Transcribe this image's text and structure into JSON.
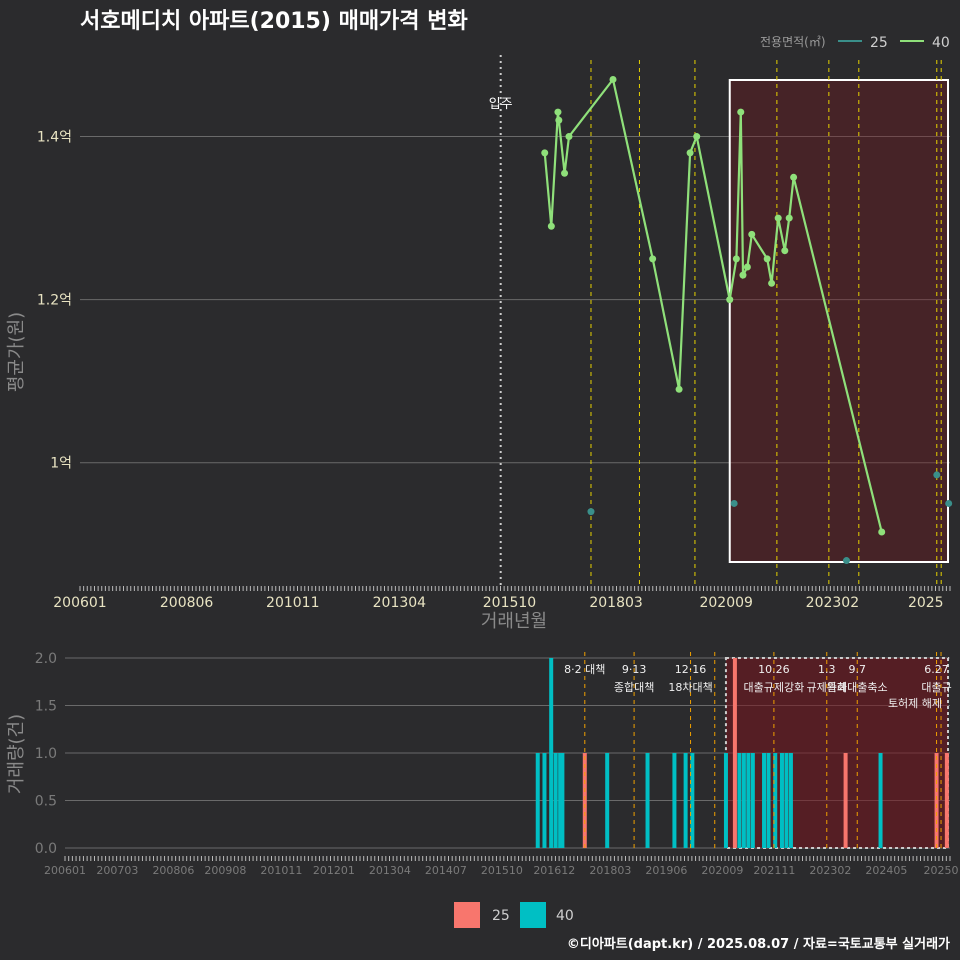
{
  "chart_data": [
    {
      "type": "line",
      "title": "서호메디치 아파트(2015) 매매가격 변화",
      "xlabel": "거래년월",
      "ylabel": "평균가(원)",
      "x_ticks": [
        "200601",
        "200806",
        "201011",
        "201304",
        "201510",
        "201803",
        "202009",
        "202302",
        "2025"
      ],
      "y_ticks": [
        {
          "value": 1.0,
          "label": "1억"
        },
        {
          "value": 1.2,
          "label": "1.2억"
        },
        {
          "value": 1.4,
          "label": "1.4억"
        }
      ],
      "xlim": [
        2006.0,
        2025.75
      ],
      "ylim": [
        0.85,
        1.5
      ],
      "move_in": {
        "x": 2015.55,
        "label": "입주"
      },
      "highlight_range": [
        2020.75,
        2025.75
      ],
      "legend_title": "전용면적(㎡)",
      "series": [
        {
          "name": "25",
          "color": "#3a8f8a",
          "points": [
            [
              2017.6,
              0.94
            ],
            [
              2020.85,
              0.95
            ],
            [
              2023.4,
              0.88
            ],
            [
              2025.45,
              0.985
            ],
            [
              2025.72,
              0.95
            ]
          ]
        },
        {
          "name": "40",
          "color": "#8fe07a",
          "points": [
            [
              2016.55,
              1.38
            ],
            [
              2016.7,
              1.29
            ],
            [
              2016.85,
              1.43
            ],
            [
              2016.87,
              1.42
            ],
            [
              2017.0,
              1.355
            ],
            [
              2017.1,
              1.4
            ],
            [
              2018.1,
              1.47
            ],
            [
              2019.0,
              1.25
            ],
            [
              2019.6,
              1.09
            ],
            [
              2019.85,
              1.38
            ],
            [
              2020.0,
              1.4
            ],
            [
              2020.75,
              1.2
            ],
            [
              2020.9,
              1.25
            ],
            [
              2021.0,
              1.43
            ],
            [
              2021.05,
              1.23
            ],
            [
              2021.15,
              1.24
            ],
            [
              2021.25,
              1.28
            ],
            [
              2021.6,
              1.25
            ],
            [
              2021.7,
              1.22
            ],
            [
              2021.85,
              1.3
            ],
            [
              2022.0,
              1.26
            ],
            [
              2022.1,
              1.3
            ],
            [
              2022.2,
              1.35
            ],
            [
              2024.2,
              0.915
            ]
          ]
        }
      ],
      "policy_lines": [
        2017.6,
        2018.7,
        2019.96,
        2021.82,
        2023.0,
        2023.68,
        2025.45,
        2025.55
      ]
    },
    {
      "type": "bar",
      "xlabel": "",
      "ylabel": "거래량(건)",
      "x_ticks": [
        "200601",
        "200703",
        "200806",
        "200908",
        "201011",
        "201201",
        "201304",
        "201407",
        "201510",
        "201612",
        "201803",
        "201906",
        "202009",
        "202111",
        "202302",
        "202405",
        "20250"
      ],
      "y_ticks": [
        "0.0",
        "0.5",
        "1.0",
        "1.5",
        "2.0"
      ],
      "ylim": [
        0,
        2
      ],
      "xlim": [
        2006.0,
        2025.75
      ],
      "highlight_range": [
        2020.75,
        2025.75
      ],
      "series": [
        {
          "name": "25",
          "color": "#f8766d",
          "bars": [
            [
              2017.6,
              1
            ],
            [
              2020.95,
              2
            ],
            [
              2023.42,
              1
            ],
            [
              2025.45,
              1
            ],
            [
              2025.68,
              1
            ]
          ]
        },
        {
          "name": "40",
          "color": "#00bfc4",
          "bars": [
            [
              2016.55,
              1
            ],
            [
              2016.7,
              1
            ],
            [
              2016.85,
              2
            ],
            [
              2016.95,
              1
            ],
            [
              2017.05,
              1
            ],
            [
              2017.1,
              1
            ],
            [
              2018.1,
              1
            ],
            [
              2019.0,
              1
            ],
            [
              2019.6,
              1
            ],
            [
              2019.85,
              1
            ],
            [
              2020.0,
              1
            ],
            [
              2020.75,
              1
            ],
            [
              2021.05,
              1
            ],
            [
              2021.15,
              1
            ],
            [
              2021.25,
              1
            ],
            [
              2021.35,
              1
            ],
            [
              2021.6,
              1
            ],
            [
              2021.7,
              1
            ],
            [
              2021.85,
              1
            ],
            [
              2022.0,
              1
            ],
            [
              2022.1,
              1
            ],
            [
              2022.2,
              1
            ],
            [
              2024.2,
              1
            ]
          ]
        }
      ],
      "policy_lines": [
        {
          "x": 2017.6,
          "date": "8·2 대책",
          "label": ""
        },
        {
          "x": 2018.7,
          "date": "9·13",
          "label": "종합대책"
        },
        {
          "x": 2019.96,
          "date": "12·16",
          "label": "18차대책"
        },
        {
          "x": 2020.5,
          "date": "",
          "label": ""
        },
        {
          "x": 2021.82,
          "date": "10.26",
          "label": "대출규제강화"
        },
        {
          "x": 2023.0,
          "date": "1.3",
          "label": "규제완화"
        },
        {
          "x": 2023.68,
          "date": "9.7",
          "label": "특례대출축소"
        },
        {
          "x": 2025.45,
          "date": "6.27",
          "label": "대출규"
        },
        {
          "x": 2025.55,
          "date": "",
          "label": ""
        }
      ],
      "extra_annotation": "토허제 해제"
    }
  ],
  "legend_bottom": [
    {
      "name": "25",
      "color": "#f8766d"
    },
    {
      "name": "40",
      "color": "#00bfc4"
    }
  ],
  "caption": "©디아파트(dapt.kr) / 2025.08.07 / 자료=국토교통부 실거래가"
}
